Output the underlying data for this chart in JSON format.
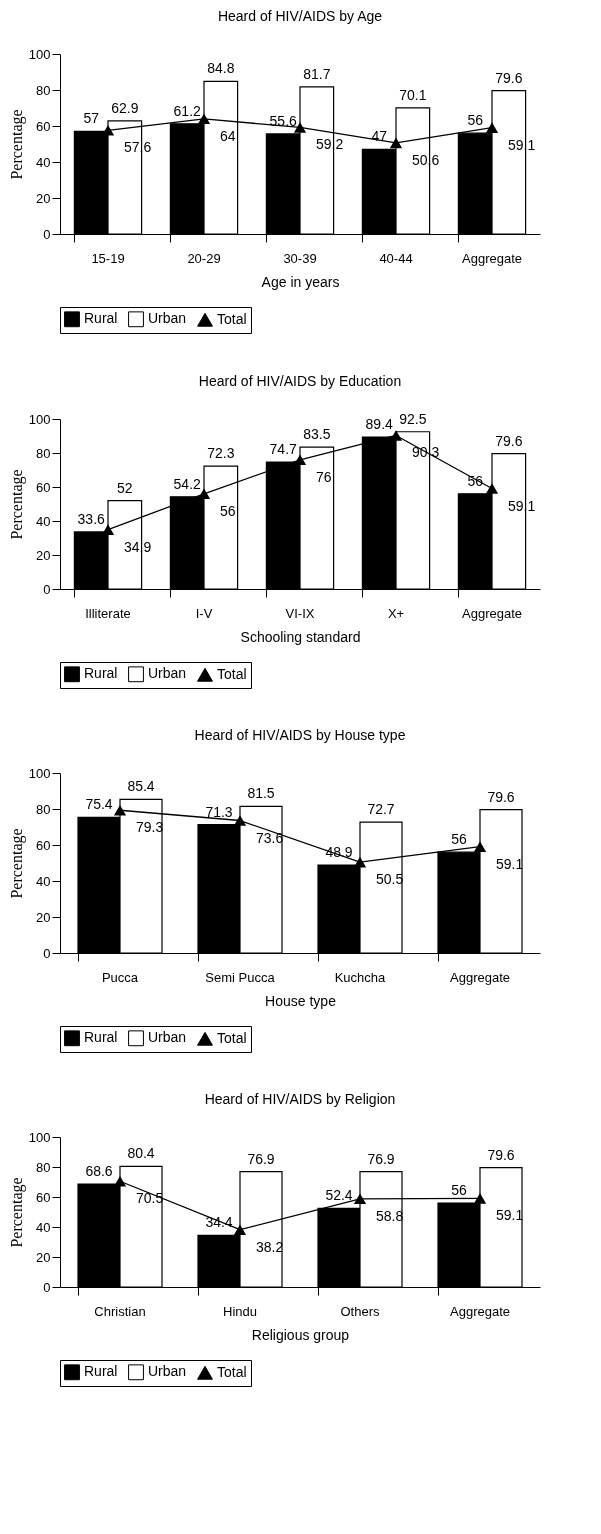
{
  "chart_data": [
    {
      "type": "bar",
      "title": "Heard of HIV/AIDS by Age",
      "xlabel": "Age in years",
      "ylabel": "Percentage",
      "categories": [
        "15-19",
        "20-29",
        "30-39",
        "40-44",
        "Aggregate"
      ],
      "series": [
        {
          "name": "Rural",
          "color": "#000000",
          "values": [
            57,
            61.2,
            55.6,
            47,
            56
          ]
        },
        {
          "name": "Urban",
          "color": "#ffffff",
          "values": [
            62.9,
            84.8,
            81.7,
            70.1,
            79.6
          ]
        },
        {
          "name": "Total",
          "type": "line",
          "color": "#000000",
          "marker": "triangle",
          "values": [
            57.6,
            64,
            59.2,
            50.6,
            59.1
          ]
        }
      ],
      "ylim": [
        0,
        100
      ],
      "yticks": [
        0,
        20,
        40,
        60,
        80,
        100
      ],
      "data_labels": true,
      "legend": "bottom"
    },
    {
      "type": "bar",
      "title": "Heard of HIV/AIDS by Education",
      "xlabel": "Schooling standard",
      "ylabel": "Percentage",
      "categories": [
        "Illiterate",
        "I-V",
        "VI-IX",
        "X+",
        "Aggregate"
      ],
      "series": [
        {
          "name": "Rural",
          "color": "#000000",
          "values": [
            33.6,
            54.2,
            74.7,
            89.4,
            56
          ]
        },
        {
          "name": "Urban",
          "color": "#ffffff",
          "values": [
            52,
            72.3,
            83.5,
            92.5,
            79.6
          ]
        },
        {
          "name": "Total",
          "type": "line",
          "color": "#000000",
          "marker": "triangle",
          "values": [
            34.9,
            56,
            76,
            90.3,
            59.1
          ]
        }
      ],
      "ylim": [
        0,
        100
      ],
      "yticks": [
        0,
        20,
        40,
        60,
        80,
        100
      ],
      "data_labels": true,
      "legend": "bottom"
    },
    {
      "type": "bar",
      "title": "Heard of HIV/AIDS by House type",
      "xlabel": "House type",
      "ylabel": "Percentage",
      "categories": [
        "Pucca",
        "Semi Pucca",
        "Kuchcha",
        "Aggregate"
      ],
      "series": [
        {
          "name": "Rural",
          "color": "#000000",
          "values": [
            75.4,
            71.3,
            48.9,
            56
          ]
        },
        {
          "name": "Urban",
          "color": "#ffffff",
          "values": [
            85.4,
            81.5,
            72.7,
            79.6
          ]
        },
        {
          "name": "Total",
          "type": "line",
          "color": "#000000",
          "marker": "triangle",
          "values": [
            79.3,
            73.6,
            50.5,
            59.1
          ]
        }
      ],
      "ylim": [
        0,
        100
      ],
      "yticks": [
        0,
        20,
        40,
        60,
        80,
        100
      ],
      "data_labels": true,
      "legend": "bottom"
    },
    {
      "type": "bar",
      "title": "Heard of HIV/AIDS by Religion",
      "xlabel": "Religious group",
      "ylabel": "Percentage",
      "categories": [
        "Christian",
        "Hindu",
        "Others",
        "Aggregate"
      ],
      "series": [
        {
          "name": "Rural",
          "color": "#000000",
          "values": [
            68.6,
            34.4,
            52.4,
            56
          ]
        },
        {
          "name": "Urban",
          "color": "#ffffff",
          "values": [
            80.4,
            76.9,
            76.9,
            79.6
          ]
        },
        {
          "name": "Total",
          "type": "line",
          "color": "#000000",
          "marker": "triangle",
          "values": [
            70.5,
            38.2,
            58.8,
            59.1
          ]
        }
      ],
      "ylim": [
        0,
        100
      ],
      "yticks": [
        0,
        20,
        40,
        60,
        80,
        100
      ],
      "data_labels": true,
      "legend": "bottom"
    }
  ]
}
